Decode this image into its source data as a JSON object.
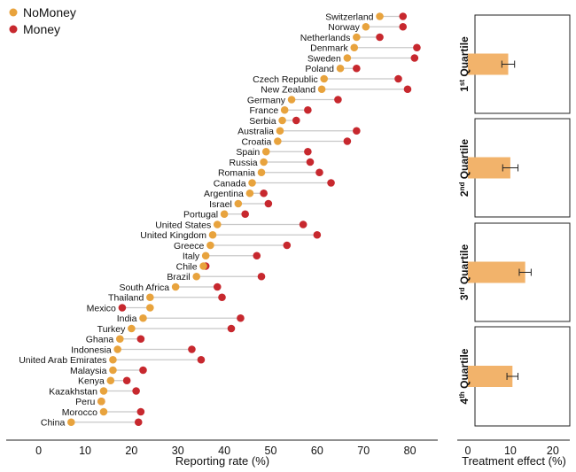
{
  "colors": {
    "nomoney": "#e8a33d",
    "money": "#c7282e",
    "bar": "#f2b36b",
    "connector": "#c8c8c8",
    "axis": "#222222"
  },
  "chart_data": [
    {
      "type": "dumbbell",
      "xlabel": "Reporting rate (%)",
      "xticks": [
        0,
        10,
        20,
        30,
        40,
        50,
        60,
        70,
        80
      ],
      "xlim": [
        -7,
        86
      ],
      "legend": {
        "placement": "top-left",
        "entries": [
          "NoMoney",
          "Money"
        ]
      },
      "series": [
        {
          "name": "NoMoney"
        },
        {
          "name": "Money"
        }
      ],
      "countries": [
        {
          "name": "Switzerland",
          "nomoney": 73.5,
          "money": 78.5
        },
        {
          "name": "Norway",
          "nomoney": 70.5,
          "money": 78.5
        },
        {
          "name": "Netherlands",
          "nomoney": 68.5,
          "money": 73.5
        },
        {
          "name": "Denmark",
          "nomoney": 68.0,
          "money": 81.5
        },
        {
          "name": "Sweden",
          "nomoney": 66.5,
          "money": 81.0
        },
        {
          "name": "Poland",
          "nomoney": 65.0,
          "money": 68.5
        },
        {
          "name": "Czech Republic",
          "nomoney": 61.5,
          "money": 77.5
        },
        {
          "name": "New Zealand",
          "nomoney": 61.0,
          "money": 79.5
        },
        {
          "name": "Germany",
          "nomoney": 54.5,
          "money": 64.5
        },
        {
          "name": "France",
          "nomoney": 53.0,
          "money": 58.0
        },
        {
          "name": "Serbia",
          "nomoney": 52.5,
          "money": 55.5
        },
        {
          "name": "Australia",
          "nomoney": 52.0,
          "money": 68.5
        },
        {
          "name": "Croatia",
          "nomoney": 51.5,
          "money": 66.5
        },
        {
          "name": "Spain",
          "nomoney": 49.0,
          "money": 58.0
        },
        {
          "name": "Russia",
          "nomoney": 48.5,
          "money": 58.5
        },
        {
          "name": "Romania",
          "nomoney": 48.0,
          "money": 60.5
        },
        {
          "name": "Canada",
          "nomoney": 46.0,
          "money": 63.0
        },
        {
          "name": "Argentina",
          "nomoney": 45.5,
          "money": 48.5
        },
        {
          "name": "Israel",
          "nomoney": 43.0,
          "money": 49.5
        },
        {
          "name": "Portugal",
          "nomoney": 40.0,
          "money": 44.5
        },
        {
          "name": "United States",
          "nomoney": 38.5,
          "money": 57.0
        },
        {
          "name": "United Kingdom",
          "nomoney": 37.5,
          "money": 60.0
        },
        {
          "name": "Greece",
          "nomoney": 37.0,
          "money": 53.5
        },
        {
          "name": "Italy",
          "nomoney": 36.0,
          "money": 47.0
        },
        {
          "name": "Chile",
          "nomoney": 35.5,
          "money": 36.0
        },
        {
          "name": "Brazil",
          "nomoney": 34.0,
          "money": 48.0
        },
        {
          "name": "South Africa",
          "nomoney": 29.5,
          "money": 38.5
        },
        {
          "name": "Thailand",
          "nomoney": 24.0,
          "money": 39.5
        },
        {
          "name": "Mexico",
          "nomoney": 24.0,
          "money": 18.0
        },
        {
          "name": "India",
          "nomoney": 22.5,
          "money": 43.5
        },
        {
          "name": "Turkey",
          "nomoney": 20.0,
          "money": 41.5
        },
        {
          "name": "Ghana",
          "nomoney": 17.5,
          "money": 22.0
        },
        {
          "name": "Indonesia",
          "nomoney": 17.0,
          "money": 33.0
        },
        {
          "name": "United Arab Emirates",
          "nomoney": 16.0,
          "money": 35.0
        },
        {
          "name": "Malaysia",
          "nomoney": 16.0,
          "money": 22.5
        },
        {
          "name": "Kenya",
          "nomoney": 15.5,
          "money": 19.0
        },
        {
          "name": "Kazakhstan",
          "nomoney": 14.0,
          "money": 21.0
        },
        {
          "name": "Peru",
          "nomoney": 13.5,
          "money": 13.5
        },
        {
          "name": "Morocco",
          "nomoney": 14.0,
          "money": 22.0
        },
        {
          "name": "China",
          "nomoney": 7.0,
          "money": 21.5
        }
      ]
    },
    {
      "type": "bar",
      "xlabel": "Treatment effect (%)",
      "xticks": [
        0,
        10,
        20
      ],
      "xlim": [
        -2.5,
        24
      ],
      "groups": [
        {
          "label_base": "1",
          "label_sup": "st",
          "label_rest": " Quartile",
          "value": 9.5,
          "error": 1.5
        },
        {
          "label_base": "2",
          "label_sup": "nd",
          "label_rest": " Quartile",
          "value": 10.0,
          "error": 1.8
        },
        {
          "label_base": "3",
          "label_sup": "rd",
          "label_rest": " Quartile",
          "value": 13.5,
          "error": 1.4
        },
        {
          "label_base": "4",
          "label_sup": "th",
          "label_rest": " Quartile",
          "value": 10.5,
          "error": 1.3
        }
      ]
    }
  ]
}
